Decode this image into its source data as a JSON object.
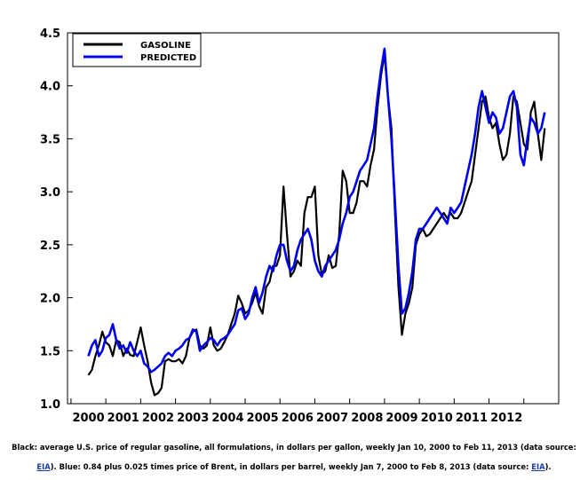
{
  "chart_data": {
    "type": "line",
    "title": "",
    "xlabel": "",
    "ylabel": "",
    "xlim": [
      1999.4,
      2013.5
    ],
    "ylim": [
      1.0,
      4.5
    ],
    "yticks": [
      "1.0",
      "1.5",
      "2.0",
      "2.5",
      "3.0",
      "3.5",
      "4.0",
      "4.5"
    ],
    "xticks": [
      "2000",
      "2001",
      "2002",
      "2003",
      "2004",
      "2005",
      "2006",
      "2007",
      "2008",
      "2009",
      "2010",
      "2011",
      "2012"
    ],
    "legend_position": "top-left",
    "series": [
      {
        "name": "GASOLINE",
        "color": "#000000",
        "x": [
          2000.0,
          2000.1,
          2000.2,
          2000.3,
          2000.4,
          2000.5,
          2000.6,
          2000.7,
          2000.8,
          2000.9,
          2001.0,
          2001.1,
          2001.2,
          2001.3,
          2001.4,
          2001.5,
          2001.6,
          2001.7,
          2001.8,
          2001.9,
          2002.0,
          2002.1,
          2002.2,
          2002.3,
          2002.4,
          2002.5,
          2002.6,
          2002.7,
          2002.8,
          2002.9,
          2003.0,
          2003.1,
          2003.2,
          2003.3,
          2003.4,
          2003.5,
          2003.6,
          2003.7,
          2003.8,
          2003.9,
          2004.0,
          2004.1,
          2004.2,
          2004.3,
          2004.4,
          2004.5,
          2004.6,
          2004.7,
          2004.8,
          2004.9,
          2005.0,
          2005.1,
          2005.2,
          2005.3,
          2005.4,
          2005.5,
          2005.6,
          2005.7,
          2005.8,
          2005.9,
          2006.0,
          2006.1,
          2006.2,
          2006.3,
          2006.4,
          2006.5,
          2006.6,
          2006.7,
          2006.8,
          2006.9,
          2007.0,
          2007.1,
          2007.2,
          2007.3,
          2007.4,
          2007.5,
          2007.6,
          2007.7,
          2007.8,
          2007.9,
          2008.0,
          2008.1,
          2008.2,
          2008.3,
          2008.4,
          2008.5,
          2008.6,
          2008.7,
          2008.8,
          2008.9,
          2009.0,
          2009.1,
          2009.2,
          2009.3,
          2009.4,
          2009.5,
          2009.6,
          2009.7,
          2009.8,
          2009.9,
          2010.0,
          2010.1,
          2010.2,
          2010.3,
          2010.4,
          2010.5,
          2010.6,
          2010.7,
          2010.8,
          2010.9,
          2011.0,
          2011.1,
          2011.2,
          2011.3,
          2011.4,
          2011.5,
          2011.6,
          2011.7,
          2011.8,
          2011.9,
          2012.0,
          2012.1,
          2012.2,
          2012.3,
          2012.4,
          2012.5,
          2012.6,
          2012.7,
          2012.8,
          2012.9,
          2013.0,
          2013.1
        ],
        "values": [
          1.27,
          1.32,
          1.45,
          1.55,
          1.68,
          1.58,
          1.55,
          1.45,
          1.6,
          1.58,
          1.45,
          1.52,
          1.46,
          1.45,
          1.58,
          1.72,
          1.55,
          1.4,
          1.2,
          1.08,
          1.1,
          1.15,
          1.4,
          1.42,
          1.4,
          1.4,
          1.42,
          1.38,
          1.45,
          1.62,
          1.68,
          1.7,
          1.55,
          1.52,
          1.55,
          1.72,
          1.55,
          1.5,
          1.52,
          1.58,
          1.65,
          1.75,
          1.85,
          2.02,
          1.95,
          1.85,
          1.88,
          1.95,
          2.05,
          1.92,
          1.85,
          2.1,
          2.15,
          2.3,
          2.3,
          2.4,
          3.05,
          2.6,
          2.2,
          2.25,
          2.35,
          2.3,
          2.8,
          2.95,
          2.95,
          3.05,
          2.4,
          2.22,
          2.25,
          2.4,
          2.28,
          2.3,
          2.6,
          3.2,
          3.1,
          2.8,
          2.8,
          2.9,
          3.1,
          3.1,
          3.05,
          3.25,
          3.4,
          3.8,
          4.1,
          4.3,
          3.9,
          3.6,
          2.8,
          2.1,
          1.65,
          1.85,
          1.95,
          2.1,
          2.5,
          2.6,
          2.65,
          2.58,
          2.6,
          2.65,
          2.7,
          2.75,
          2.8,
          2.75,
          2.8,
          2.75,
          2.75,
          2.8,
          2.9,
          3.0,
          3.1,
          3.35,
          3.6,
          3.85,
          3.9,
          3.7,
          3.6,
          3.65,
          3.45,
          3.3,
          3.35,
          3.55,
          3.9,
          3.85,
          3.65,
          3.45,
          3.4,
          3.75,
          3.85,
          3.55,
          3.3,
          3.6
        ],
        "values_alt": []
      },
      {
        "name": "PREDICTED",
        "color": "#0000ee",
        "x": [
          2000.0,
          2000.1,
          2000.2,
          2000.3,
          2000.4,
          2000.5,
          2000.6,
          2000.7,
          2000.8,
          2000.9,
          2001.0,
          2001.1,
          2001.2,
          2001.3,
          2001.4,
          2001.5,
          2001.6,
          2001.7,
          2001.8,
          2001.9,
          2002.0,
          2002.1,
          2002.2,
          2002.3,
          2002.4,
          2002.5,
          2002.6,
          2002.7,
          2002.8,
          2002.9,
          2003.0,
          2003.1,
          2003.2,
          2003.3,
          2003.4,
          2003.5,
          2003.6,
          2003.7,
          2003.8,
          2003.9,
          2004.0,
          2004.1,
          2004.2,
          2004.3,
          2004.4,
          2004.5,
          2004.6,
          2004.7,
          2004.8,
          2004.9,
          2005.0,
          2005.1,
          2005.2,
          2005.3,
          2005.4,
          2005.5,
          2005.6,
          2005.7,
          2005.8,
          2005.9,
          2006.0,
          2006.1,
          2006.2,
          2006.3,
          2006.4,
          2006.5,
          2006.6,
          2006.7,
          2006.8,
          2006.9,
          2007.0,
          2007.1,
          2007.2,
          2007.3,
          2007.4,
          2007.5,
          2007.6,
          2007.7,
          2007.8,
          2007.9,
          2008.0,
          2008.1,
          2008.2,
          2008.3,
          2008.4,
          2008.5,
          2008.6,
          2008.7,
          2008.8,
          2008.9,
          2009.0,
          2009.1,
          2009.2,
          2009.3,
          2009.4,
          2009.5,
          2009.6,
          2009.7,
          2009.8,
          2009.9,
          2010.0,
          2010.1,
          2010.2,
          2010.3,
          2010.4,
          2010.5,
          2010.6,
          2010.7,
          2010.8,
          2010.9,
          2011.0,
          2011.1,
          2011.2,
          2011.3,
          2011.4,
          2011.5,
          2011.6,
          2011.7,
          2011.8,
          2011.9,
          2012.0,
          2012.1,
          2012.2,
          2012.3,
          2012.4,
          2012.5,
          2012.6,
          2012.7,
          2012.8,
          2012.9,
          2013.0,
          2013.1
        ],
        "values": [
          1.45,
          1.55,
          1.6,
          1.45,
          1.5,
          1.62,
          1.65,
          1.75,
          1.6,
          1.52,
          1.55,
          1.48,
          1.58,
          1.5,
          1.45,
          1.5,
          1.38,
          1.35,
          1.3,
          1.32,
          1.35,
          1.38,
          1.45,
          1.48,
          1.45,
          1.5,
          1.52,
          1.55,
          1.6,
          1.62,
          1.7,
          1.68,
          1.5,
          1.55,
          1.58,
          1.62,
          1.6,
          1.55,
          1.6,
          1.62,
          1.65,
          1.7,
          1.75,
          1.88,
          1.9,
          1.8,
          1.85,
          2.0,
          2.1,
          1.95,
          2.05,
          2.2,
          2.3,
          2.25,
          2.4,
          2.5,
          2.5,
          2.35,
          2.25,
          2.3,
          2.45,
          2.55,
          2.6,
          2.65,
          2.55,
          2.35,
          2.25,
          2.2,
          2.3,
          2.35,
          2.4,
          2.45,
          2.55,
          2.7,
          2.8,
          2.95,
          3.0,
          3.1,
          3.2,
          3.25,
          3.3,
          3.45,
          3.6,
          3.9,
          4.15,
          4.35,
          3.9,
          3.5,
          2.9,
          2.3,
          1.85,
          1.9,
          2.05,
          2.25,
          2.55,
          2.65,
          2.65,
          2.7,
          2.75,
          2.8,
          2.85,
          2.8,
          2.75,
          2.7,
          2.85,
          2.8,
          2.85,
          2.9,
          3.05,
          3.2,
          3.35,
          3.55,
          3.8,
          3.95,
          3.8,
          3.65,
          3.75,
          3.7,
          3.55,
          3.6,
          3.75,
          3.9,
          3.95,
          3.8,
          3.35,
          3.25,
          3.5,
          3.7,
          3.65,
          3.55,
          3.6,
          3.75
        ]
      }
    ],
    "caption_line1": "Black: average U.S. price of regular gasoline, all formulations, in dollars per gallon, weekly Jan 10, 2000 to Feb 11, 2013 (data source:",
    "caption_line2_link": "EIA",
    "caption_line2_middle": "). Blue: 0.84 plus 0.025 times price of Brent, in dollars per barrel, weekly Jan 7, 2000 to Feb 8, 2013 (data source: ",
    "caption_line2_link_b": "EIA",
    "caption_line2_end": ")."
  }
}
